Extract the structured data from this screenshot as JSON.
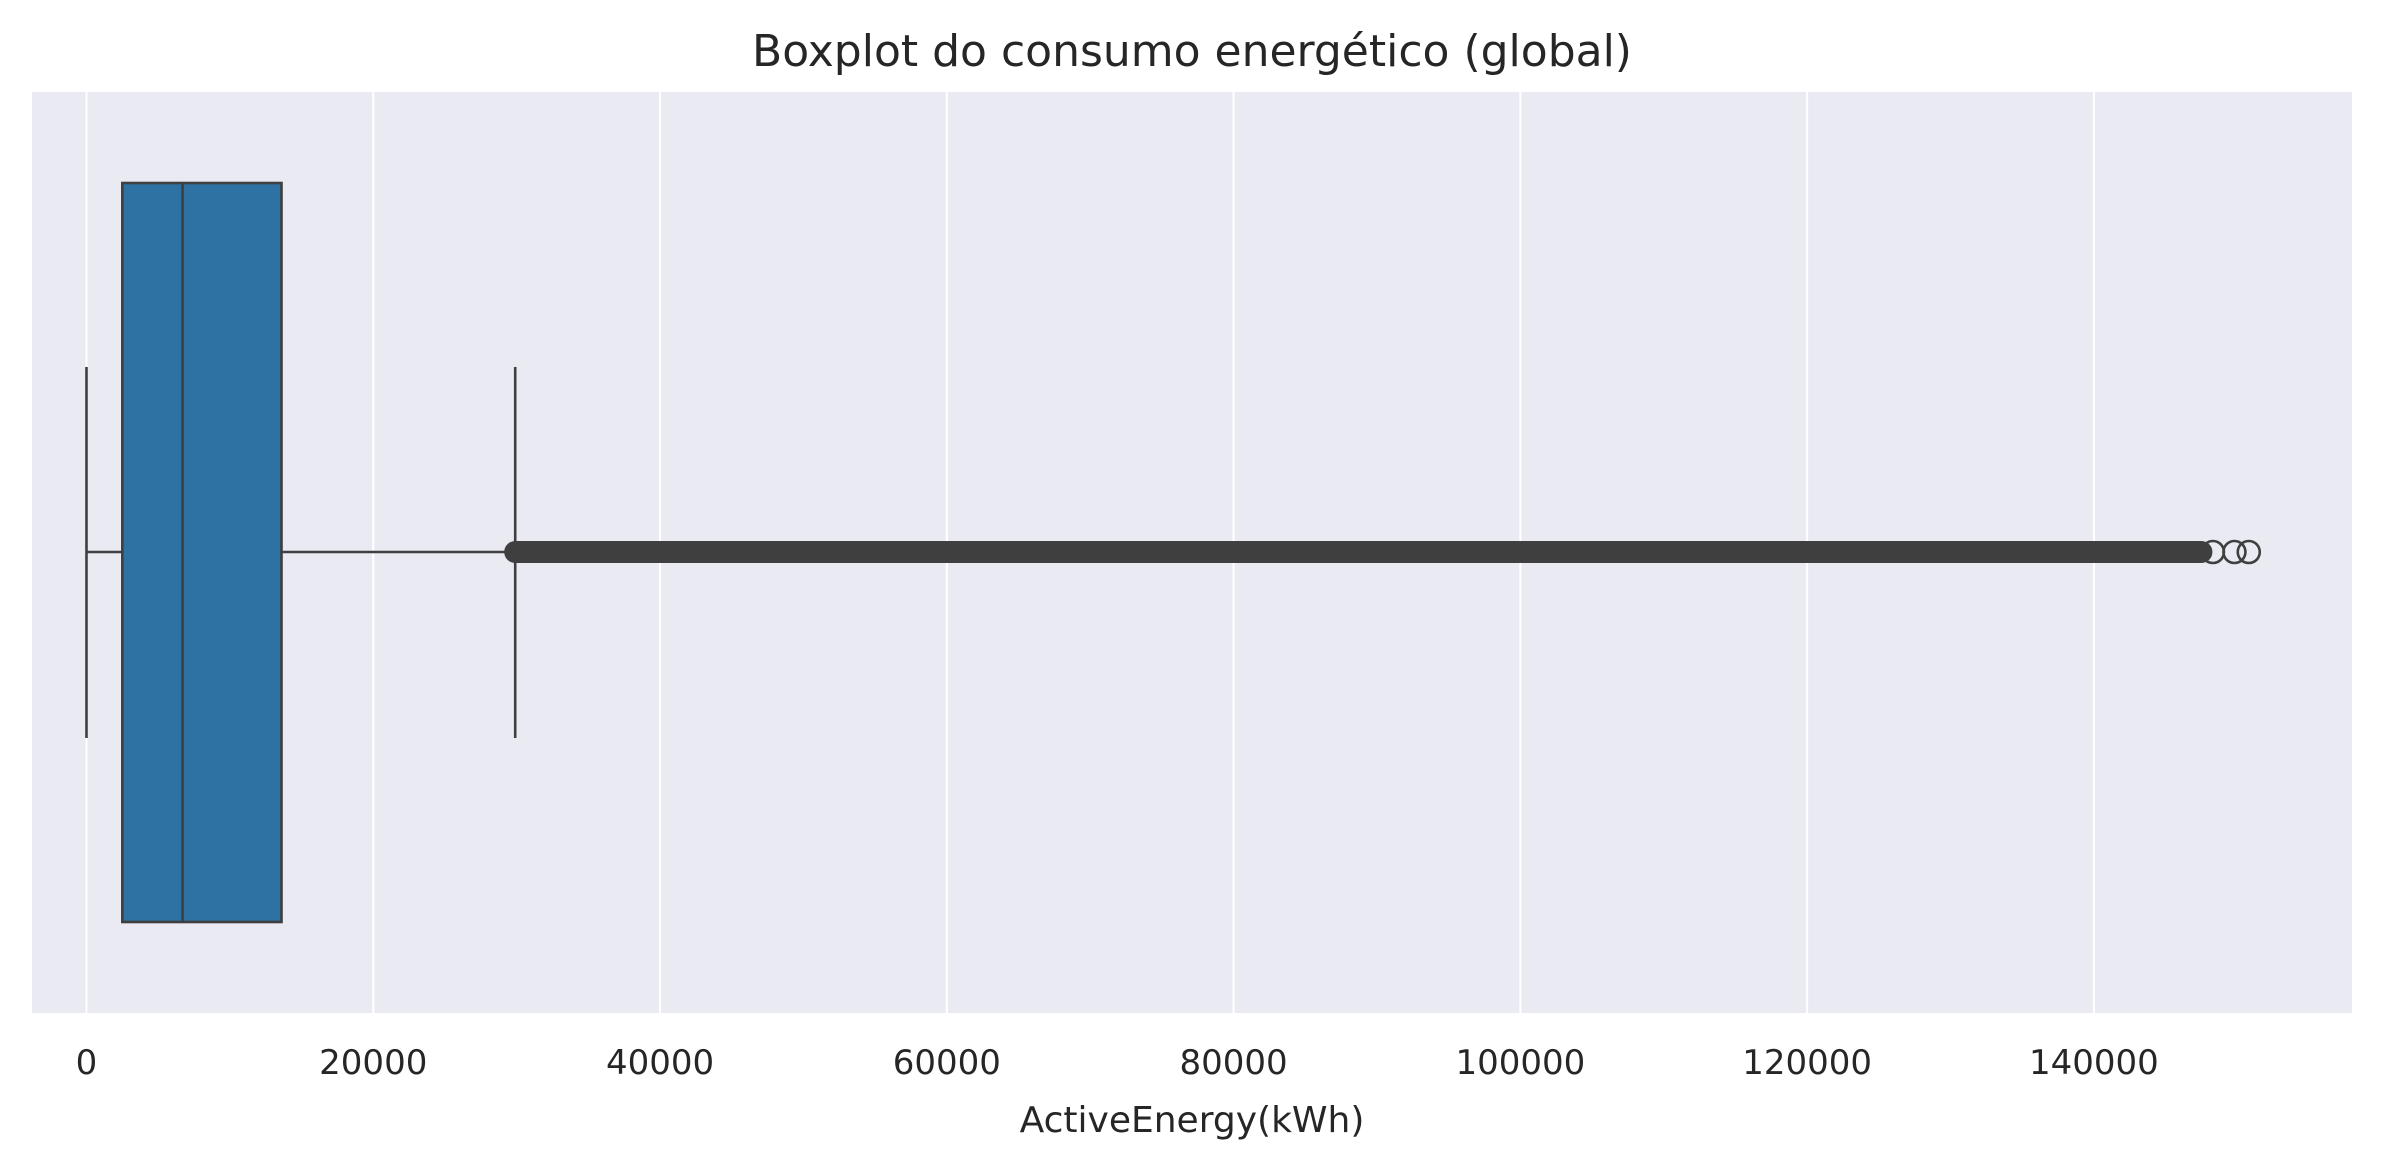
{
  "chart_data": {
    "type": "boxplot",
    "title": "Boxplot do consumo energético (global)",
    "xlabel": "ActiveEnergy(kWh)",
    "ylabel": "",
    "xlim": [
      -3800,
      158000
    ],
    "x_ticks": [
      0,
      20000,
      40000,
      60000,
      80000,
      100000,
      120000,
      140000
    ],
    "x_tick_labels": [
      "0",
      "20000",
      "40000",
      "60000",
      "80000",
      "100000",
      "120000",
      "140000"
    ],
    "grid": true,
    "orientation": "horizontal",
    "box": {
      "whisker_low": 0,
      "q1": 2500,
      "median": 6700,
      "q3": 13600,
      "whisker_high": 29900
    },
    "outliers": {
      "dense_range": [
        29900,
        147500
      ],
      "sparse_points": [
        148300,
        149800,
        150800
      ]
    },
    "colors": {
      "background": "#eaeaf2",
      "grid": "#ffffff",
      "box_fill": "#2e72a3",
      "line": "#3f3f3f"
    }
  }
}
